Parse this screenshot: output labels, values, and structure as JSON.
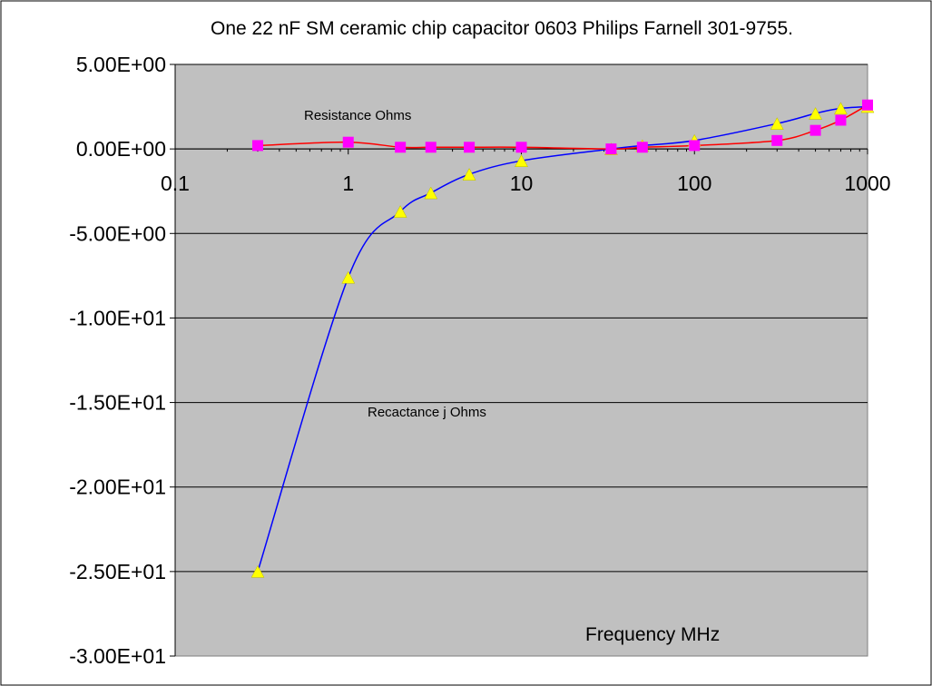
{
  "chart_data": {
    "type": "line",
    "title": "One 22 nF SM ceramic chip capacitor 0603 Philips Farnell 301-9755.",
    "xlabel": "Frequency MHz",
    "ylabel": "",
    "x_scale": "log",
    "xlim": [
      0.1,
      1000
    ],
    "ylim": [
      -30,
      5
    ],
    "grid": "horizontal",
    "legend": "none",
    "x_ticks": [
      "0.1",
      "1",
      "10",
      "100",
      "1000"
    ],
    "y_ticks": [
      "5.00E+00",
      "0.00E+00",
      "-5.00E+00",
      "-1.00E+01",
      "-1.50E+01",
      "-2.00E+01",
      "-2.50E+01",
      "-3.00E+01"
    ],
    "y_tick_values": [
      5,
      0,
      -5,
      -10,
      -15,
      -20,
      -25,
      -30
    ],
    "series": [
      {
        "name": "Resistance Ohms",
        "line_color": "#ff0000",
        "marker": "square",
        "marker_color": "#ff00ff",
        "points": [
          {
            "x": 0.3,
            "y": 0.2
          },
          {
            "x": 1,
            "y": 0.4
          },
          {
            "x": 2,
            "y": 0.1
          },
          {
            "x": 3,
            "y": 0.1
          },
          {
            "x": 5,
            "y": 0.1
          },
          {
            "x": 10,
            "y": 0.1
          },
          {
            "x": 33,
            "y": 0.0
          },
          {
            "x": 50,
            "y": 0.1
          },
          {
            "x": 100,
            "y": 0.2
          },
          {
            "x": 300,
            "y": 0.5
          },
          {
            "x": 500,
            "y": 1.1
          },
          {
            "x": 700,
            "y": 1.7
          },
          {
            "x": 1000,
            "y": 2.6
          }
        ]
      },
      {
        "name": "Recactance j Ohms",
        "line_color": "#0000ff",
        "marker": "triangle",
        "marker_color": "#ffff00",
        "points": [
          {
            "x": 0.3,
            "y": -25.0
          },
          {
            "x": 1,
            "y": -7.6
          },
          {
            "x": 2,
            "y": -3.7
          },
          {
            "x": 3,
            "y": -2.6
          },
          {
            "x": 5,
            "y": -1.5
          },
          {
            "x": 10,
            "y": -0.7
          },
          {
            "x": 33,
            "y": 0.0
          },
          {
            "x": 50,
            "y": 0.2
          },
          {
            "x": 100,
            "y": 0.5
          },
          {
            "x": 300,
            "y": 1.5
          },
          {
            "x": 500,
            "y": 2.1
          },
          {
            "x": 700,
            "y": 2.4
          },
          {
            "x": 1000,
            "y": 2.5
          }
        ]
      }
    ],
    "colors": {
      "plot_background": "#c0c0c0",
      "grid_line": "#000000",
      "page_background": "#ffffff"
    }
  }
}
